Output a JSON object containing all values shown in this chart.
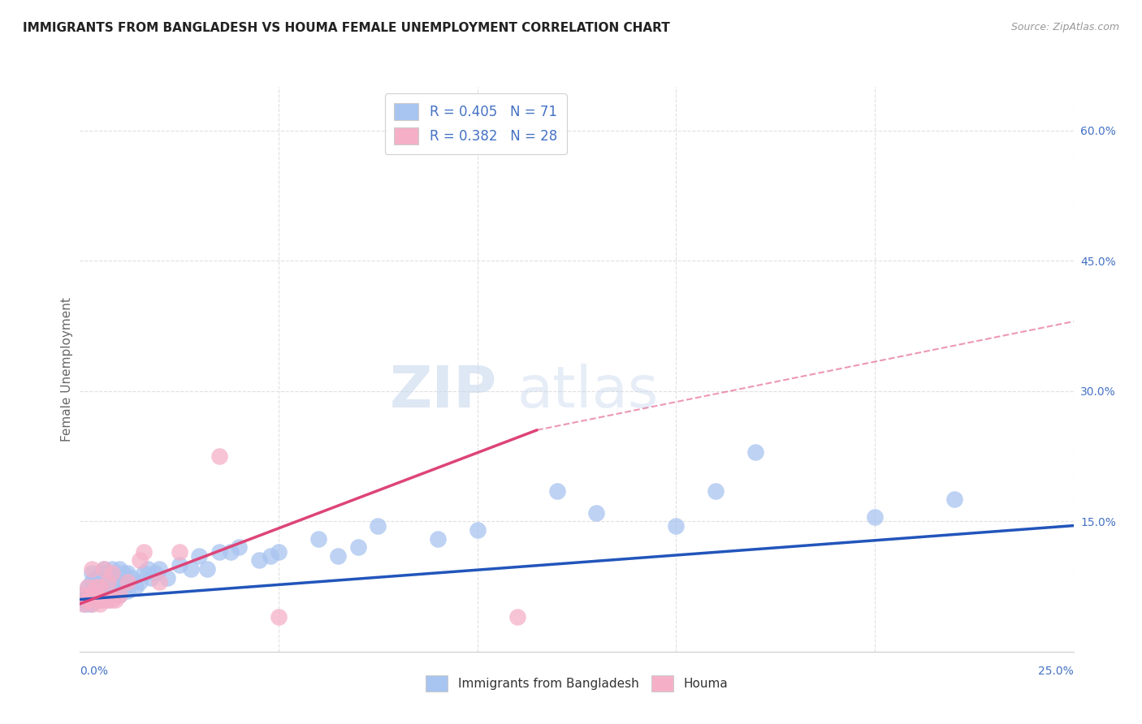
{
  "title": "IMMIGRANTS FROM BANGLADESH VS HOUMA FEMALE UNEMPLOYMENT CORRELATION CHART",
  "source": "Source: ZipAtlas.com",
  "ylabel": "Female Unemployment",
  "xlim": [
    0.0,
    0.25
  ],
  "ylim": [
    0.0,
    0.65
  ],
  "ytick_positions": [
    0.15,
    0.3,
    0.45,
    0.6
  ],
  "ytick_labels": [
    "15.0%",
    "30.0%",
    "45.0%",
    "60.0%"
  ],
  "scatter1_color": "#a8c4f0",
  "scatter2_color": "#f5b0c8",
  "line1_color": "#2255bb",
  "line2_color": "#dd4477",
  "R1": "0.405",
  "N1": "71",
  "R2": "0.382",
  "N2": "28",
  "watermark_zip": "ZIP",
  "watermark_atlas": "atlas",
  "bg_color": "#ffffff",
  "grid_color": "#e0e0e0",
  "label1": "Immigrants from Bangladesh",
  "label2": "Houma",
  "legend1_color": "#a8c4f0",
  "legend2_color": "#f5b0c8",
  "scatter1_x": [
    0.001,
    0.001,
    0.001,
    0.002,
    0.002,
    0.002,
    0.002,
    0.003,
    0.003,
    0.003,
    0.003,
    0.003,
    0.004,
    0.004,
    0.004,
    0.004,
    0.005,
    0.005,
    0.005,
    0.005,
    0.006,
    0.006,
    0.006,
    0.006,
    0.007,
    0.007,
    0.007,
    0.008,
    0.008,
    0.008,
    0.009,
    0.009,
    0.01,
    0.01,
    0.01,
    0.011,
    0.011,
    0.012,
    0.012,
    0.013,
    0.014,
    0.015,
    0.016,
    0.017,
    0.018,
    0.019,
    0.02,
    0.022,
    0.025,
    0.028,
    0.03,
    0.032,
    0.035,
    0.038,
    0.04,
    0.045,
    0.048,
    0.05,
    0.06,
    0.065,
    0.07,
    0.075,
    0.09,
    0.1,
    0.12,
    0.13,
    0.15,
    0.16,
    0.17,
    0.2,
    0.22
  ],
  "scatter1_y": [
    0.055,
    0.06,
    0.065,
    0.055,
    0.06,
    0.065,
    0.075,
    0.055,
    0.06,
    0.07,
    0.08,
    0.09,
    0.06,
    0.065,
    0.075,
    0.085,
    0.06,
    0.065,
    0.075,
    0.09,
    0.065,
    0.07,
    0.08,
    0.095,
    0.06,
    0.075,
    0.09,
    0.065,
    0.08,
    0.095,
    0.07,
    0.085,
    0.065,
    0.08,
    0.095,
    0.075,
    0.09,
    0.07,
    0.09,
    0.085,
    0.075,
    0.08,
    0.09,
    0.095,
    0.085,
    0.09,
    0.095,
    0.085,
    0.1,
    0.095,
    0.11,
    0.095,
    0.115,
    0.115,
    0.12,
    0.105,
    0.11,
    0.115,
    0.13,
    0.11,
    0.12,
    0.145,
    0.13,
    0.14,
    0.185,
    0.16,
    0.145,
    0.185,
    0.23,
    0.155,
    0.175
  ],
  "scatter2_x": [
    0.001,
    0.001,
    0.002,
    0.002,
    0.003,
    0.003,
    0.003,
    0.004,
    0.004,
    0.005,
    0.005,
    0.005,
    0.006,
    0.006,
    0.007,
    0.007,
    0.008,
    0.008,
    0.009,
    0.01,
    0.012,
    0.015,
    0.016,
    0.02,
    0.025,
    0.035,
    0.05,
    0.11
  ],
  "scatter2_y": [
    0.055,
    0.065,
    0.06,
    0.075,
    0.055,
    0.065,
    0.095,
    0.065,
    0.075,
    0.055,
    0.06,
    0.075,
    0.06,
    0.095,
    0.06,
    0.08,
    0.06,
    0.09,
    0.06,
    0.065,
    0.08,
    0.105,
    0.115,
    0.08,
    0.115,
    0.225,
    0.04,
    0.04
  ],
  "line1_x0": 0.0,
  "line1_x1": 0.25,
  "line1_y0": 0.06,
  "line1_y1": 0.145,
  "line2_x0": 0.0,
  "line2_x1": 0.115,
  "line2_y0": 0.055,
  "line2_y1": 0.255,
  "line2d_x0": 0.115,
  "line2d_x1": 0.25,
  "line2d_y0": 0.255,
  "line2d_y1": 0.38
}
